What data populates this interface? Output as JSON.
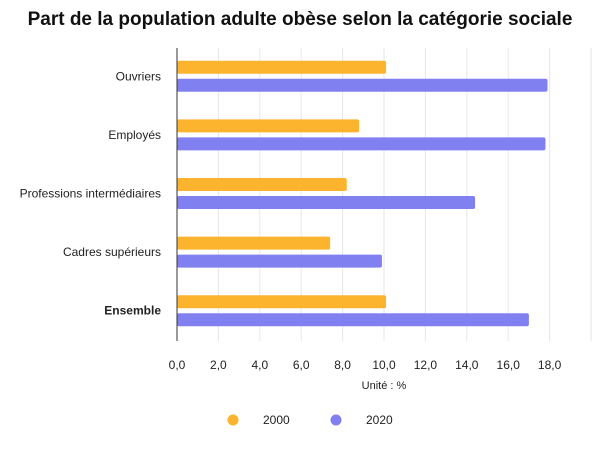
{
  "chart_data": {
    "type": "bar",
    "orientation": "horizontal",
    "title": "Part de la population adulte obèse selon la catégorie sociale",
    "xlabel": "Unité : %",
    "categories": [
      "Ouvriers",
      "Employés",
      "Professions intermédiaires",
      "Cadres supérieurs",
      "Ensemble"
    ],
    "bold_categories": [
      "Ensemble"
    ],
    "series": [
      {
        "name": "2000",
        "color": "#fcb32e",
        "values": [
          10.1,
          8.8,
          8.2,
          7.4,
          10.1
        ]
      },
      {
        "name": "2020",
        "color": "#8080f0",
        "values": [
          17.9,
          17.8,
          14.4,
          9.9,
          17.0
        ]
      }
    ],
    "xlim": [
      0,
      20
    ],
    "xticks": [
      0,
      2,
      4,
      6,
      8,
      10,
      12,
      14,
      16,
      18
    ],
    "xtick_labels": [
      "0,0",
      "2,0",
      "4,0",
      "6,0",
      "8,0",
      "10,0",
      "12,0",
      "14,0",
      "16,0",
      "18,0"
    ],
    "grid": true,
    "legend": "bottom"
  }
}
